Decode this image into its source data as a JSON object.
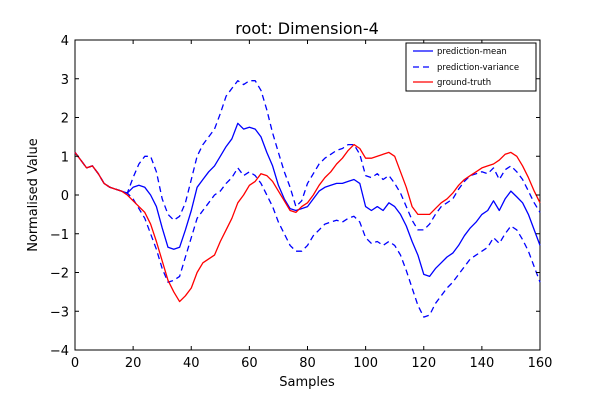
{
  "chart_data": {
    "type": "line",
    "title": "root: Dimension-4",
    "xlabel": "Samples",
    "ylabel": "Normalised Value",
    "xlim": [
      0,
      160
    ],
    "ylim": [
      -4,
      4
    ],
    "xticks": [
      0,
      20,
      40,
      60,
      80,
      100,
      120,
      140,
      160
    ],
    "yticks": [
      -4,
      -3,
      -2,
      -1,
      0,
      1,
      2,
      3,
      4
    ],
    "grid": false,
    "legend_position": "top-right",
    "x": [
      0,
      2,
      4,
      6,
      8,
      10,
      12,
      14,
      16,
      18,
      20,
      22,
      24,
      26,
      28,
      30,
      32,
      34,
      36,
      38,
      40,
      42,
      44,
      46,
      48,
      50,
      52,
      54,
      56,
      58,
      60,
      62,
      64,
      66,
      68,
      70,
      72,
      74,
      76,
      78,
      80,
      82,
      84,
      86,
      88,
      90,
      92,
      94,
      96,
      98,
      100,
      102,
      104,
      106,
      108,
      110,
      112,
      114,
      116,
      118,
      120,
      122,
      124,
      126,
      128,
      130,
      132,
      134,
      136,
      138,
      140,
      142,
      144,
      146,
      148,
      150,
      152,
      154,
      156,
      158,
      160
    ],
    "series": [
      {
        "name": "prediction-mean",
        "color": "#0000ff",
        "style": "solid",
        "values": [
          1.1,
          0.9,
          0.7,
          0.75,
          0.55,
          0.3,
          0.2,
          0.15,
          0.1,
          0.05,
          0.2,
          0.25,
          0.2,
          0.0,
          -0.3,
          -0.85,
          -1.35,
          -1.4,
          -1.35,
          -0.9,
          -0.4,
          0.2,
          0.4,
          0.6,
          0.75,
          1.0,
          1.25,
          1.45,
          1.85,
          1.7,
          1.75,
          1.7,
          1.5,
          1.1,
          0.75,
          0.25,
          -0.1,
          -0.35,
          -0.4,
          -0.35,
          -0.3,
          -0.1,
          0.1,
          0.2,
          0.25,
          0.3,
          0.3,
          0.35,
          0.4,
          0.3,
          -0.3,
          -0.4,
          -0.3,
          -0.4,
          -0.2,
          -0.3,
          -0.5,
          -0.8,
          -1.2,
          -1.55,
          -2.05,
          -2.1,
          -1.9,
          -1.75,
          -1.6,
          -1.5,
          -1.3,
          -1.05,
          -0.85,
          -0.7,
          -0.5,
          -0.4,
          -0.15,
          -0.4,
          -0.1,
          0.1,
          -0.05,
          -0.2,
          -0.5,
          -0.9,
          -1.3
        ]
      },
      {
        "name": "prediction-variance",
        "color": "#0000ff",
        "style": "dashed",
        "values_upper": [
          1.1,
          0.9,
          0.7,
          0.75,
          0.55,
          0.3,
          0.2,
          0.15,
          0.1,
          0.05,
          0.45,
          0.8,
          1.0,
          1.0,
          0.6,
          -0.1,
          -0.5,
          -0.65,
          -0.55,
          -0.2,
          0.4,
          1.0,
          1.3,
          1.5,
          1.7,
          2.1,
          2.55,
          2.75,
          2.95,
          2.85,
          2.95,
          2.95,
          2.7,
          2.2,
          1.6,
          1.1,
          0.6,
          0.2,
          -0.3,
          -0.15,
          0.3,
          0.55,
          0.8,
          0.95,
          1.05,
          1.15,
          1.2,
          1.3,
          1.3,
          1.05,
          0.5,
          0.45,
          0.55,
          0.4,
          0.5,
          0.3,
          0.05,
          -0.3,
          -0.65,
          -0.9,
          -0.9,
          -0.75,
          -0.5,
          -0.3,
          -0.2,
          -0.1,
          0.15,
          0.35,
          0.5,
          0.55,
          0.6,
          0.55,
          0.7,
          0.4,
          0.65,
          0.75,
          0.6,
          0.4,
          0.1,
          -0.2,
          -0.45
        ],
        "values_lower": [
          1.1,
          0.9,
          0.7,
          0.75,
          0.55,
          0.3,
          0.2,
          0.15,
          0.1,
          0.05,
          -0.1,
          -0.35,
          -0.6,
          -1.0,
          -1.4,
          -1.9,
          -2.25,
          -2.2,
          -2.1,
          -1.6,
          -1.1,
          -0.6,
          -0.4,
          -0.2,
          0.0,
          0.1,
          0.3,
          0.45,
          0.7,
          0.5,
          0.6,
          0.5,
          0.3,
          0.0,
          -0.3,
          -0.7,
          -1.0,
          -1.3,
          -1.45,
          -1.45,
          -1.3,
          -1.05,
          -0.9,
          -0.75,
          -0.7,
          -0.65,
          -0.7,
          -0.6,
          -0.55,
          -0.7,
          -1.1,
          -1.25,
          -1.2,
          -1.3,
          -1.2,
          -1.3,
          -1.55,
          -1.95,
          -2.4,
          -2.85,
          -3.15,
          -3.1,
          -2.8,
          -2.6,
          -2.4,
          -2.25,
          -2.05,
          -1.85,
          -1.65,
          -1.55,
          -1.45,
          -1.35,
          -1.1,
          -1.25,
          -1.0,
          -0.8,
          -0.9,
          -1.15,
          -1.45,
          -1.85,
          -2.25
        ]
      },
      {
        "name": "ground-truth",
        "color": "#ff0000",
        "style": "solid",
        "values": [
          1.1,
          0.9,
          0.7,
          0.75,
          0.55,
          0.3,
          0.2,
          0.15,
          0.1,
          0.0,
          -0.15,
          -0.3,
          -0.45,
          -0.75,
          -1.2,
          -1.7,
          -2.2,
          -2.5,
          -2.75,
          -2.6,
          -2.4,
          -2.0,
          -1.75,
          -1.65,
          -1.55,
          -1.2,
          -0.9,
          -0.6,
          -0.2,
          0.0,
          0.25,
          0.35,
          0.55,
          0.5,
          0.35,
          0.1,
          -0.15,
          -0.4,
          -0.45,
          -0.3,
          -0.2,
          0.0,
          0.25,
          0.45,
          0.6,
          0.8,
          0.95,
          1.15,
          1.3,
          1.2,
          0.95,
          0.95,
          1.0,
          1.05,
          1.1,
          1.0,
          0.6,
          0.2,
          -0.3,
          -0.5,
          -0.5,
          -0.5,
          -0.35,
          -0.2,
          -0.1,
          0.05,
          0.25,
          0.4,
          0.5,
          0.6,
          0.7,
          0.75,
          0.8,
          0.9,
          1.05,
          1.1,
          1.0,
          0.75,
          0.45,
          0.1,
          -0.2
        ]
      }
    ]
  },
  "legend": {
    "items": [
      "prediction-mean",
      "prediction-variance",
      "ground-truth"
    ]
  }
}
